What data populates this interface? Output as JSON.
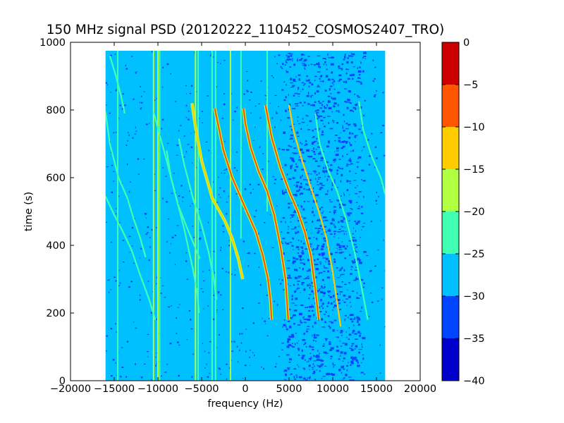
{
  "chart_data": {
    "type": "heatmap",
    "title": "150 MHz signal PSD (20120222_110452_COSMOS2407_TRO)",
    "xlabel": "frequency (Hz)",
    "ylabel": "time (s)",
    "xlim": [
      -20000,
      20000
    ],
    "ylim": [
      0,
      1000
    ],
    "xticks": [
      -20000,
      -15000,
      -10000,
      -5000,
      0,
      5000,
      10000,
      15000,
      20000
    ],
    "xtick_labels": [
      "−20000",
      "−15000",
      "−10000",
      "−5000",
      "0",
      "5000",
      "10000",
      "15000",
      "20000"
    ],
    "yticks": [
      0,
      200,
      400,
      600,
      800,
      1000
    ],
    "ytick_labels": [
      "0",
      "200",
      "400",
      "600",
      "800",
      "1000"
    ],
    "data_extent": {
      "x": [
        -16000,
        16000
      ],
      "y": [
        0,
        975
      ]
    },
    "background_level_dB": -28,
    "colorbar": {
      "range": [
        -40,
        0
      ],
      "ticks": [
        0,
        -5,
        -10,
        -15,
        -20,
        -25,
        -30,
        -35,
        -40
      ],
      "tick_labels": [
        "0",
        "−5",
        "−10",
        "−15",
        "−20",
        "−25",
        "−30",
        "−35",
        "−40"
      ],
      "bins": [
        {
          "min": -40,
          "max": -35,
          "color": "#0000cc"
        },
        {
          "min": -35,
          "max": -30,
          "color": "#0044ff"
        },
        {
          "min": -30,
          "max": -25,
          "color": "#00c0ff"
        },
        {
          "min": -25,
          "max": -20,
          "color": "#40ffb0"
        },
        {
          "min": -20,
          "max": -15,
          "color": "#b0ff40"
        },
        {
          "min": -15,
          "max": -10,
          "color": "#ffcc00"
        },
        {
          "min": -10,
          "max": -5,
          "color": "#ff5500"
        },
        {
          "min": -5,
          "max": 0,
          "color": "#cc0000"
        }
      ]
    },
    "noisy_band_hz": [
      4000,
      13500
    ],
    "vertical_lines": [
      {
        "x": -14600,
        "t_range": [
          0,
          975
        ],
        "level": -22
      },
      {
        "x": -10500,
        "t_range": [
          0,
          975
        ],
        "level": -20
      },
      {
        "x": -10000,
        "t_range": [
          0,
          975
        ],
        "level": -20
      },
      {
        "x": -9800,
        "t_range": [
          0,
          975
        ],
        "level": -23
      },
      {
        "x": -5700,
        "t_range": [
          0,
          975
        ],
        "level": -18
      },
      {
        "x": -5400,
        "t_range": [
          0,
          975
        ],
        "level": -23
      },
      {
        "x": -3800,
        "t_range": [
          0,
          975
        ],
        "level": -24
      },
      {
        "x": -3400,
        "t_range": [
          0,
          975
        ],
        "level": -23
      },
      {
        "x": -1700,
        "t_range": [
          0,
          975
        ],
        "level": -20
      },
      {
        "x": -500,
        "t_range": [
          420,
          975
        ],
        "level": -24
      },
      {
        "x": 2500,
        "t_range": [
          500,
          975
        ],
        "level": -24
      }
    ],
    "series": [
      {
        "name": "",
        "level": -22,
        "points": [
          [
            -16000,
            795
          ],
          [
            -15500,
            700
          ],
          [
            -14500,
            600
          ],
          [
            -13500,
            540
          ],
          [
            -12800,
            480
          ],
          [
            -12000,
            420
          ],
          [
            -11400,
            365
          ]
        ]
      },
      {
        "name": "",
        "level": -23,
        "points": [
          [
            -16000,
            545
          ],
          [
            -15000,
            490
          ],
          [
            -14000,
            440
          ],
          [
            -13000,
            385
          ],
          [
            -12000,
            310
          ],
          [
            -11000,
            240
          ],
          [
            -10300,
            180
          ]
        ]
      },
      {
        "name": "",
        "level": -22,
        "points": [
          [
            -9000,
            680
          ],
          [
            -8500,
            600
          ],
          [
            -7700,
            520
          ],
          [
            -6800,
            460
          ],
          [
            -6000,
            410
          ],
          [
            -5200,
            360
          ]
        ]
      },
      {
        "name": "",
        "level": -23,
        "points": [
          [
            -10500,
            795
          ],
          [
            -9000,
            650
          ],
          [
            -8000,
            550
          ],
          [
            -7000,
            450
          ],
          [
            -6000,
            330
          ],
          [
            -5500,
            260
          ],
          [
            -5300,
            200
          ]
        ]
      },
      {
        "name": "",
        "level": -21,
        "points": [
          [
            -7600,
            715
          ],
          [
            -7000,
            640
          ],
          [
            -6000,
            540
          ],
          [
            -5000,
            460
          ],
          [
            -4200,
            380
          ],
          [
            -3600,
            300
          ],
          [
            -3300,
            240
          ]
        ]
      },
      {
        "name": "",
        "level": -12,
        "points": [
          [
            -6100,
            820
          ],
          [
            -5700,
            750
          ],
          [
            -5000,
            650
          ],
          [
            -3800,
            540
          ],
          [
            -2300,
            470
          ],
          [
            -1500,
            420
          ],
          [
            -800,
            360
          ],
          [
            -300,
            300
          ]
        ]
      },
      {
        "name": "",
        "level": -10,
        "points": [
          [
            -3500,
            805
          ],
          [
            -2500,
            680
          ],
          [
            -1500,
            600
          ],
          [
            0,
            510
          ],
          [
            1200,
            440
          ],
          [
            2000,
            370
          ],
          [
            2600,
            300
          ],
          [
            2900,
            230
          ],
          [
            3000,
            180
          ]
        ]
      },
      {
        "name": "",
        "level": -7,
        "points": [
          [
            -200,
            805
          ],
          [
            0,
            760
          ],
          [
            600,
            690
          ],
          [
            1500,
            620
          ],
          [
            2500,
            560
          ],
          [
            3300,
            490
          ],
          [
            4000,
            400
          ],
          [
            4600,
            300
          ],
          [
            4900,
            180
          ]
        ]
      },
      {
        "name": "",
        "level": -10,
        "points": [
          [
            2300,
            815
          ],
          [
            3000,
            720
          ],
          [
            4000,
            630
          ],
          [
            5000,
            560
          ],
          [
            6000,
            500
          ],
          [
            6800,
            440
          ],
          [
            7500,
            370
          ],
          [
            8000,
            270
          ],
          [
            8400,
            180
          ]
        ]
      },
      {
        "name": "",
        "level": -15,
        "points": [
          [
            5000,
            815
          ],
          [
            5500,
            740
          ],
          [
            6500,
            650
          ],
          [
            7500,
            570
          ],
          [
            8400,
            500
          ],
          [
            9300,
            420
          ],
          [
            10000,
            320
          ],
          [
            10500,
            230
          ],
          [
            10900,
            160
          ]
        ]
      },
      {
        "name": "",
        "level": -22,
        "points": [
          [
            8000,
            790
          ],
          [
            8500,
            700
          ],
          [
            9500,
            620
          ],
          [
            10500,
            560
          ],
          [
            11500,
            480
          ],
          [
            12500,
            380
          ],
          [
            13500,
            250
          ],
          [
            14000,
            180
          ]
        ]
      },
      {
        "name": "",
        "level": -22,
        "points": [
          [
            13000,
            825
          ],
          [
            13500,
            740
          ],
          [
            14500,
            660
          ],
          [
            15500,
            600
          ],
          [
            16000,
            550
          ]
        ]
      },
      {
        "name": "",
        "level": -24,
        "points": [
          [
            -15500,
            960
          ],
          [
            -14800,
            900
          ],
          [
            -14200,
            840
          ],
          [
            -13800,
            790
          ]
        ]
      }
    ]
  }
}
